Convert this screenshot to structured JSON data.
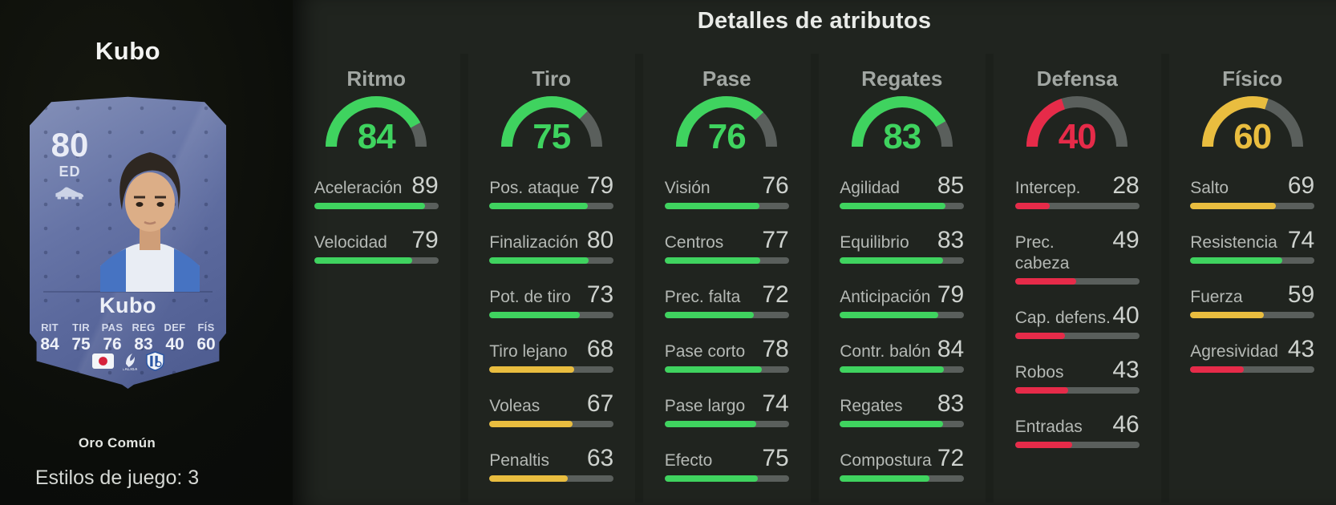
{
  "panel": {
    "title": "Detalles de atributos"
  },
  "player": {
    "name": "Kubo",
    "rarity": "Oro Común",
    "playstyles_label": "Estilos de juego: 3",
    "card": {
      "rating": "80",
      "position": "ED",
      "name": "Kubo",
      "stats": [
        {
          "label": "RIT",
          "value": "84"
        },
        {
          "label": "TIR",
          "value": "75"
        },
        {
          "label": "PAS",
          "value": "76"
        },
        {
          "label": "REG",
          "value": "83"
        },
        {
          "label": "DEF",
          "value": "40"
        },
        {
          "label": "FÍS",
          "value": "60"
        }
      ],
      "badges": [
        "japan-flag-icon",
        "laliga-logo-icon",
        "real-sociedad-crest-icon"
      ],
      "icons": [
        "boot-icon"
      ]
    }
  },
  "palette": {
    "green": "#3fd35f",
    "yellow": "#e9bd3f",
    "red": "#e62b49",
    "track": "#5a5f5c",
    "card_blue": "#63719f",
    "panel_bg": "#20241f",
    "left_bg": "#0b0d0a"
  },
  "thresholds": {
    "green_min": 70,
    "yellow_min": 50
  },
  "attributes": {
    "groups": [
      {
        "name": "Ritmo",
        "overall": 84,
        "stats": [
          {
            "label": "Aceleración",
            "value": 89
          },
          {
            "label": "Velocidad",
            "value": 79
          }
        ]
      },
      {
        "name": "Tiro",
        "overall": 75,
        "stats": [
          {
            "label": "Pos. ataque",
            "value": 79
          },
          {
            "label": "Finalización",
            "value": 80
          },
          {
            "label": "Pot. de tiro",
            "value": 73
          },
          {
            "label": "Tiro lejano",
            "value": 68
          },
          {
            "label": "Voleas",
            "value": 67
          },
          {
            "label": "Penaltis",
            "value": 63
          }
        ]
      },
      {
        "name": "Pase",
        "overall": 76,
        "stats": [
          {
            "label": "Visión",
            "value": 76
          },
          {
            "label": "Centros",
            "value": 77
          },
          {
            "label": "Prec. falta",
            "value": 72
          },
          {
            "label": "Pase corto",
            "value": 78
          },
          {
            "label": "Pase largo",
            "value": 74
          },
          {
            "label": "Efecto",
            "value": 75
          }
        ]
      },
      {
        "name": "Regates",
        "overall": 83,
        "stats": [
          {
            "label": "Agilidad",
            "value": 85
          },
          {
            "label": "Equilibrio",
            "value": 83
          },
          {
            "label": "Anticipación",
            "value": 79
          },
          {
            "label": "Contr. balón",
            "value": 84
          },
          {
            "label": "Regates",
            "value": 83
          },
          {
            "label": "Compostura",
            "value": 72
          }
        ]
      },
      {
        "name": "Defensa",
        "overall": 40,
        "stats": [
          {
            "label": "Intercep.",
            "value": 28
          },
          {
            "label": "Prec. cabeza",
            "value": 49
          },
          {
            "label": "Cap. defens.",
            "value": 40
          },
          {
            "label": "Robos",
            "value": 43
          },
          {
            "label": "Entradas",
            "value": 46
          }
        ]
      },
      {
        "name": "Físico",
        "overall": 60,
        "stats": [
          {
            "label": "Salto",
            "value": 69
          },
          {
            "label": "Resistencia",
            "value": 74
          },
          {
            "label": "Fuerza",
            "value": 59
          },
          {
            "label": "Agresividad",
            "value": 43
          }
        ]
      }
    ]
  }
}
